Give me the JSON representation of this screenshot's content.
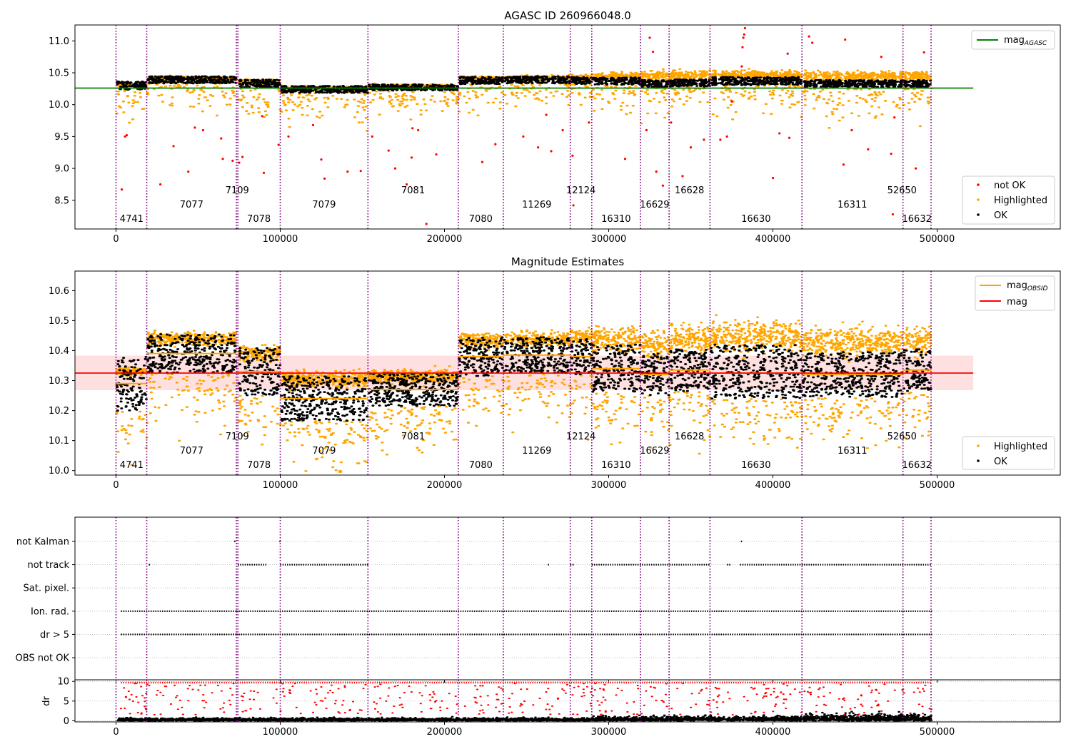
{
  "figure": {
    "obsid_boundaries": [
      0,
      18700,
      73300,
      74200,
      100000,
      153400,
      208400,
      235800,
      276600,
      289700,
      319300,
      336800,
      361700,
      417700,
      479200,
      496300
    ],
    "obsid_label_positions": [
      {
        "label": "4741",
        "x": 9500,
        "row": 3
      },
      {
        "label": "7077",
        "x": 46000,
        "row": 2
      },
      {
        "label": "7109",
        "x": 73800,
        "row": 1
      },
      {
        "label": "7078",
        "x": 87000,
        "row": 3
      },
      {
        "label": "7079",
        "x": 126700,
        "row": 2
      },
      {
        "label": "7081",
        "x": 180900,
        "row": 1
      },
      {
        "label": "7080",
        "x": 222100,
        "row": 3
      },
      {
        "label": "11269",
        "x": 256200,
        "row": 2
      },
      {
        "label": "12124",
        "x": 283100,
        "row": 1
      },
      {
        "label": "16310",
        "x": 304500,
        "row": 3
      },
      {
        "label": "16629",
        "x": 328000,
        "row": 2
      },
      {
        "label": "16628",
        "x": 349200,
        "row": 1
      },
      {
        "label": "16630",
        "x": 389700,
        "row": 3
      },
      {
        "label": "16311",
        "x": 448400,
        "row": 2
      },
      {
        "label": "52650",
        "x": 478600,
        "row": 1
      },
      {
        "label": "16632",
        "x": 487700,
        "row": 3
      }
    ],
    "colors": {
      "ok": "#000000",
      "highlighted": "#ffa500",
      "not_ok": "#ff0000",
      "boundary": "#800080",
      "agasc_line": "#008000",
      "mag_line": "#ff0000",
      "obsid_line": "#ffa500",
      "band": "#ffcccc"
    }
  },
  "chart_data": [
    {
      "type": "scatter",
      "title": "AGASC ID 260966048.0",
      "xlim": [
        -25000,
        575000
      ],
      "ylim": [
        8.05,
        11.25
      ],
      "xticks": [
        0,
        100000,
        200000,
        300000,
        400000,
        500000
      ],
      "yticks": [
        8.5,
        9.0,
        9.5,
        10.0,
        10.5,
        11.0
      ],
      "ytick_labels": [
        "8.5",
        "9.0",
        "9.5",
        "10.0",
        "10.5",
        "11.0"
      ],
      "mag_agasc": 10.26,
      "agasc_line_x": [
        -25000,
        522000
      ],
      "segments": [
        {
          "x0": 0,
          "x1": 18700,
          "mean": 10.3,
          "ok_spread": 0.08,
          "hl_offset": 0.0
        },
        {
          "x0": 18700,
          "x1": 73300,
          "mean": 10.39,
          "ok_spread": 0.07,
          "hl_offset": 0.02
        },
        {
          "x0": 74200,
          "x1": 100000,
          "mean": 10.33,
          "ok_spread": 0.08,
          "hl_offset": 0.03
        },
        {
          "x0": 100000,
          "x1": 153400,
          "mean": 10.24,
          "ok_spread": 0.07,
          "hl_offset": 0.02
        },
        {
          "x0": 153400,
          "x1": 208400,
          "mean": 10.27,
          "ok_spread": 0.06,
          "hl_offset": 0.02
        },
        {
          "x0": 208400,
          "x1": 235800,
          "mean": 10.38,
          "ok_spread": 0.07,
          "hl_offset": 0.03
        },
        {
          "x0": 235800,
          "x1": 276600,
          "mean": 10.39,
          "ok_spread": 0.07,
          "hl_offset": 0.03
        },
        {
          "x0": 276600,
          "x1": 289700,
          "mean": 10.38,
          "ok_spread": 0.07,
          "hl_offset": 0.05
        },
        {
          "x0": 289700,
          "x1": 319300,
          "mean": 10.37,
          "ok_spread": 0.07,
          "hl_offset": 0.08
        },
        {
          "x0": 319300,
          "x1": 336800,
          "mean": 10.33,
          "ok_spread": 0.07,
          "hl_offset": 0.12
        },
        {
          "x0": 336800,
          "x1": 361700,
          "mean": 10.34,
          "ok_spread": 0.07,
          "hl_offset": 0.12
        },
        {
          "x0": 361700,
          "x1": 417700,
          "mean": 10.37,
          "ok_spread": 0.08,
          "hl_offset": 0.1
        },
        {
          "x0": 417700,
          "x1": 479200,
          "mean": 10.33,
          "ok_spread": 0.07,
          "hl_offset": 0.12
        },
        {
          "x0": 479200,
          "x1": 496300,
          "mean": 10.33,
          "ok_spread": 0.07,
          "hl_offset": 0.12
        }
      ],
      "not_ok_points": [
        [
          3500,
          8.67
        ],
        [
          5500,
          9.5
        ],
        [
          6500,
          9.52
        ],
        [
          27000,
          8.75
        ],
        [
          35000,
          9.35
        ],
        [
          44000,
          8.95
        ],
        [
          48000,
          9.64
        ],
        [
          53000,
          9.6
        ],
        [
          64000,
          9.47
        ],
        [
          65000,
          9.15
        ],
        [
          71000,
          9.12
        ],
        [
          75000,
          9.09
        ],
        [
          77000,
          9.18
        ],
        [
          89000,
          9.82
        ],
        [
          90000,
          8.93
        ],
        [
          99000,
          9.37
        ],
        [
          105000,
          9.5
        ],
        [
          120000,
          9.68
        ],
        [
          125000,
          9.14
        ],
        [
          127000,
          8.84
        ],
        [
          141000,
          8.95
        ],
        [
          149000,
          8.96
        ],
        [
          156000,
          9.5
        ],
        [
          166000,
          9.28
        ],
        [
          170000,
          9.0
        ],
        [
          177000,
          8.75
        ],
        [
          180000,
          9.17
        ],
        [
          180500,
          9.63
        ],
        [
          184000,
          9.6
        ],
        [
          189000,
          8.13
        ],
        [
          195000,
          9.22
        ],
        [
          223000,
          9.1
        ],
        [
          231000,
          9.38
        ],
        [
          248000,
          9.5
        ],
        [
          257000,
          9.33
        ],
        [
          262000,
          9.84
        ],
        [
          265000,
          9.27
        ],
        [
          272000,
          9.6
        ],
        [
          278000,
          9.2
        ],
        [
          278500,
          8.42
        ],
        [
          288000,
          9.72
        ],
        [
          310000,
          9.15
        ],
        [
          323000,
          9.6
        ],
        [
          325000,
          11.05
        ],
        [
          327000,
          10.83
        ],
        [
          329000,
          8.95
        ],
        [
          333000,
          8.73
        ],
        [
          338000,
          9.72
        ],
        [
          345000,
          8.88
        ],
        [
          350000,
          9.33
        ],
        [
          358000,
          9.45
        ],
        [
          368000,
          9.45
        ],
        [
          372000,
          9.5
        ],
        [
          375000,
          10.05
        ],
        [
          381000,
          10.6
        ],
        [
          381500,
          10.9
        ],
        [
          382000,
          11.05
        ],
        [
          382500,
          11.1
        ],
        [
          383000,
          11.2
        ],
        [
          400000,
          8.85
        ],
        [
          404000,
          9.55
        ],
        [
          409000,
          10.8
        ],
        [
          410000,
          9.48
        ],
        [
          422000,
          11.07
        ],
        [
          424000,
          10.97
        ],
        [
          443000,
          9.06
        ],
        [
          444000,
          11.02
        ],
        [
          448000,
          9.6
        ],
        [
          458000,
          9.3
        ],
        [
          466000,
          10.75
        ],
        [
          472000,
          9.23
        ],
        [
          473000,
          8.28
        ],
        [
          474000,
          9.8
        ],
        [
          487000,
          9.0
        ],
        [
          492000,
          10.82
        ]
      ],
      "legend_lines": [
        {
          "label": "mag",
          "sub": "AGASC"
        }
      ],
      "legend_points": [
        "not OK",
        "Highlighted",
        "OK"
      ]
    },
    {
      "type": "scatter",
      "title": "Magnitude Estimates",
      "xlim": [
        -25000,
        575000
      ],
      "ylim": [
        9.985,
        10.665
      ],
      "xticks": [
        0,
        100000,
        200000,
        300000,
        400000,
        500000
      ],
      "yticks": [
        10.0,
        10.1,
        10.2,
        10.3,
        10.4,
        10.5,
        10.6
      ],
      "ytick_labels": [
        "10.0",
        "10.1",
        "10.2",
        "10.3",
        "10.4",
        "10.5",
        "10.6"
      ],
      "mag": 10.325,
      "mag_band": [
        10.268,
        10.383
      ],
      "mag_line_x": [
        -25000,
        522000
      ],
      "segments": [
        {
          "x0": 0,
          "x1": 18700,
          "mag_obsid": 10.29,
          "ok_mean": 10.29,
          "ok_spread": 0.09,
          "hl_offset": 0.0
        },
        {
          "x0": 18700,
          "x1": 73300,
          "mag_obsid": 10.39,
          "ok_mean": 10.39,
          "ok_spread": 0.065,
          "hl_offset": 0.04
        },
        {
          "x0": 74200,
          "x1": 100000,
          "mag_obsid": 10.33,
          "ok_mean": 10.33,
          "ok_spread": 0.08,
          "hl_offset": 0.05
        },
        {
          "x0": 100000,
          "x1": 153400,
          "mag_obsid": 10.24,
          "ok_mean": 10.24,
          "ok_spread": 0.075,
          "hl_offset": 0.06
        },
        {
          "x0": 153400,
          "x1": 208400,
          "mag_obsid": 10.27,
          "ok_mean": 10.27,
          "ok_spread": 0.055,
          "hl_offset": 0.04
        },
        {
          "x0": 208400,
          "x1": 235800,
          "mag_obsid": 10.38,
          "ok_mean": 10.38,
          "ok_spread": 0.065,
          "hl_offset": 0.05
        },
        {
          "x0": 235800,
          "x1": 276600,
          "mag_obsid": 10.385,
          "ok_mean": 10.385,
          "ok_spread": 0.06,
          "hl_offset": 0.05
        },
        {
          "x0": 276600,
          "x1": 289700,
          "mag_obsid": 10.38,
          "ok_mean": 10.38,
          "ok_spread": 0.06,
          "hl_offset": 0.07
        },
        {
          "x0": 289700,
          "x1": 319300,
          "mag_obsid": 10.34,
          "ok_mean": 10.34,
          "ok_spread": 0.08,
          "hl_offset": 0.12
        },
        {
          "x0": 319300,
          "x1": 336800,
          "mag_obsid": 10.32,
          "ok_mean": 10.32,
          "ok_spread": 0.07,
          "hl_offset": 0.14
        },
        {
          "x0": 336800,
          "x1": 361700,
          "mag_obsid": 10.335,
          "ok_mean": 10.335,
          "ok_spread": 0.07,
          "hl_offset": 0.15
        },
        {
          "x0": 361700,
          "x1": 417700,
          "mag_obsid": 10.325,
          "ok_mean": 10.33,
          "ok_spread": 0.09,
          "hl_offset": 0.15
        },
        {
          "x0": 417700,
          "x1": 479200,
          "mag_obsid": 10.32,
          "ok_mean": 10.32,
          "ok_spread": 0.075,
          "hl_offset": 0.15
        },
        {
          "x0": 479200,
          "x1": 496300,
          "mag_obsid": 10.335,
          "ok_mean": 10.335,
          "ok_spread": 0.07,
          "hl_offset": 0.13
        }
      ],
      "legend_lines": [
        {
          "label": "mag",
          "sub": "OBSID"
        },
        {
          "label": "mag",
          "sub": ""
        }
      ],
      "legend_points": [
        "Highlighted",
        "OK"
      ]
    },
    {
      "type": "scatter",
      "title": "",
      "xlim": [
        -25000,
        575000
      ],
      "flag_rows": [
        "not Kalman",
        "not track",
        "Sat. pixel.",
        "Ion. rad.",
        "dr > 5",
        "OBS not OK"
      ],
      "flag_segments": {
        "not Kalman": [
          [
            72000,
            73000
          ],
          [
            99500,
            100500
          ],
          [
            380500,
            381500
          ]
        ],
        "not track": [
          [
            20000,
            21000
          ],
          [
            74200,
            92000
          ],
          [
            100000,
            153400
          ],
          [
            263000,
            264000
          ],
          [
            276600,
            278500
          ],
          [
            289700,
            361700
          ],
          [
            372000,
            374500
          ],
          [
            380000,
            496300
          ]
        ],
        "Sat. pixel.": [],
        "Ion. rad.": [
          [
            3000,
            73300
          ],
          [
            73300,
            496300
          ]
        ],
        "dr > 5": [
          [
            3000,
            73300
          ],
          [
            73300,
            496300
          ]
        ],
        "OBS not OK": []
      }
    },
    {
      "type": "scatter",
      "title": "",
      "ylabel": "dr",
      "xlim": [
        -25000,
        575000
      ],
      "ylim": [
        -0.3,
        10.4
      ],
      "xticks": [
        0,
        100000,
        200000,
        300000,
        400000,
        500000
      ],
      "yticks": [
        0,
        5,
        10
      ],
      "ytick_labels": [
        "0",
        "5",
        "10"
      ],
      "dr_cap": 10
    }
  ]
}
